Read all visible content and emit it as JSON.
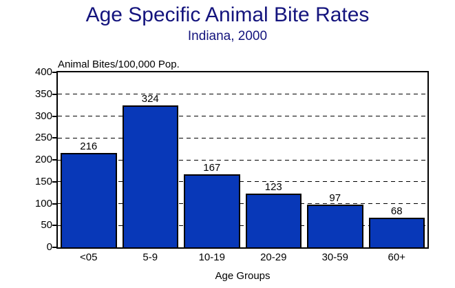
{
  "chart_data": {
    "type": "bar",
    "title": "Age Specific Animal Bite Rates",
    "subtitle": "Indiana, 2000",
    "unit_label": "Animal Bites/100,000 Pop.",
    "xlabel": "Age Groups",
    "categories": [
      "<05",
      "5-9",
      "10-19",
      "20-29",
      "30-59",
      "60+"
    ],
    "values": [
      216,
      324,
      167,
      123,
      97,
      68
    ],
    "ylim": [
      0,
      400
    ],
    "ytick_step": 50,
    "yticks": [
      0,
      50,
      100,
      150,
      200,
      250,
      300,
      350,
      400
    ],
    "grid": "horizontal-dashed",
    "legend_position": "none",
    "colors": {
      "bar_fill": "#0838b8",
      "bar_border": "#000000",
      "title_text": "#14147d",
      "axis_text": "#000000",
      "plot_border": "#000000",
      "background": "#ffffff"
    }
  }
}
